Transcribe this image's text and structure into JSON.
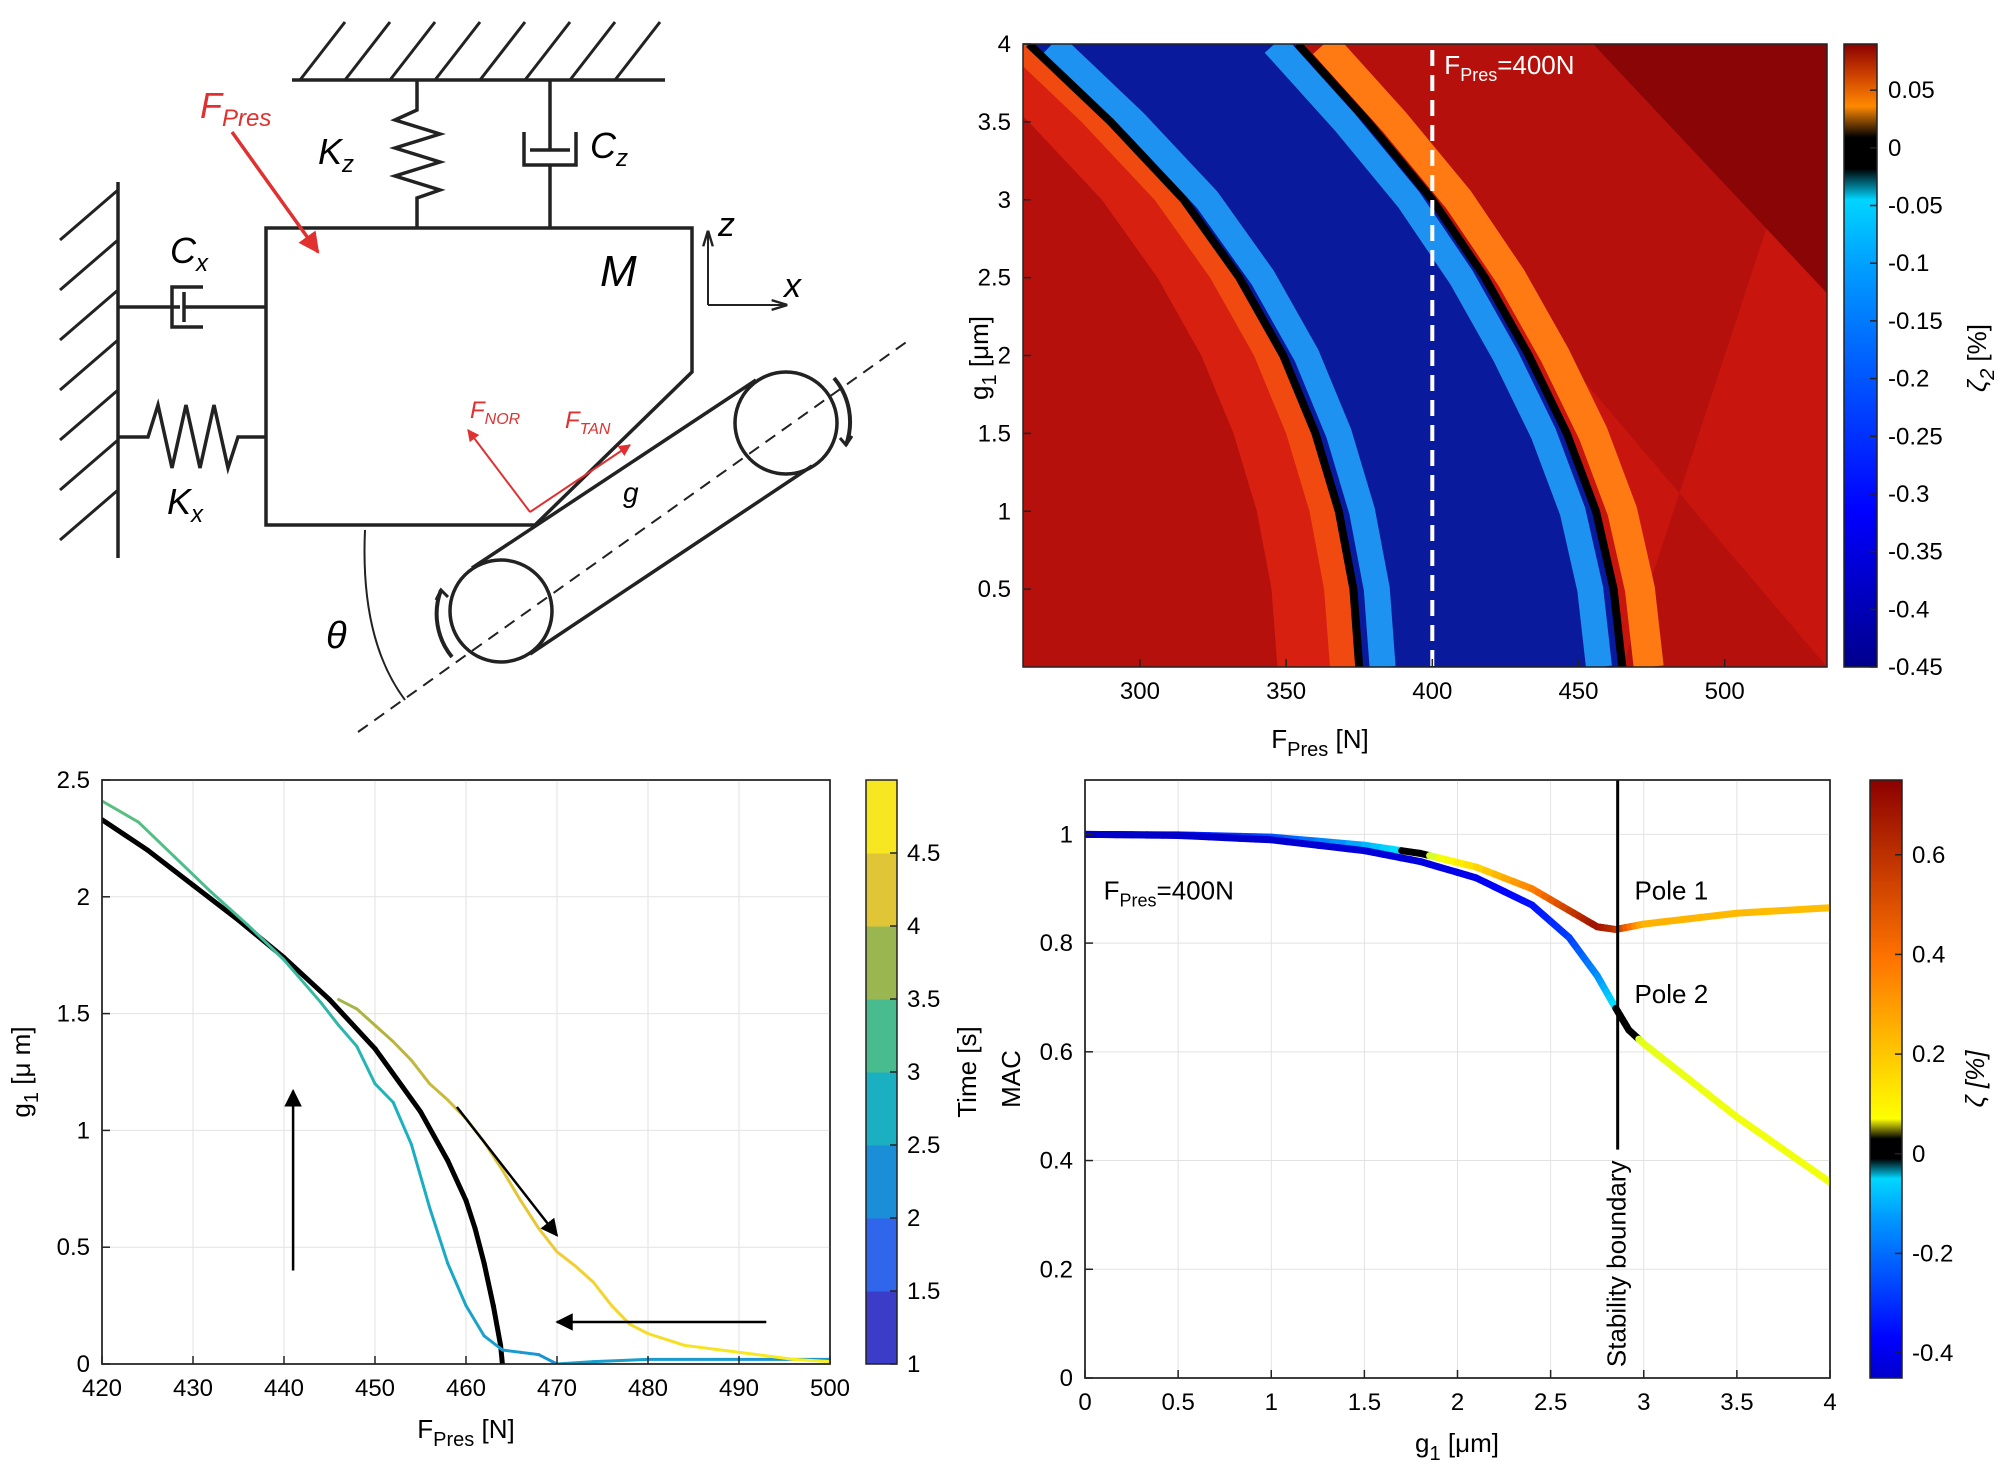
{
  "figure": {
    "diagram": {
      "labels": {
        "f_pres": "F",
        "f_pres_sub": "Pres",
        "kz": "K",
        "kz_sub": "z",
        "cz": "C",
        "cz_sub": "z",
        "cx": "C",
        "cx_sub": "x",
        "kx": "K",
        "kx_sub": "x",
        "mass": "M",
        "z_axis": "z",
        "x_axis": "x",
        "f_nor": "F",
        "f_nor_sub": "NOR",
        "f_tan": "F",
        "f_tan_sub": "TAN",
        "gap": "g",
        "theta": "θ"
      },
      "colors": {
        "force": "#e03030",
        "line": "#222222"
      }
    }
  },
  "chart_data": [
    {
      "id": "top-right",
      "type": "heatmap",
      "xlabel": "F",
      "xlabel_sub": "Pres",
      "xlabel_unit": " [N]",
      "ylabel": "g",
      "ylabel_sub": "1",
      "ylabel_unit": " [μm]",
      "xlim": [
        260,
        535
      ],
      "ylim": [
        0,
        4
      ],
      "xticks": [
        300,
        350,
        400,
        450,
        500
      ],
      "yticks": [
        0.5,
        1,
        1.5,
        2,
        2.5,
        3,
        3.5,
        4
      ],
      "stability_curves": [
        {
          "points": [
            [
              262,
              4.0
            ],
            [
              290,
              3.5
            ],
            [
              315,
              3.0
            ],
            [
              334,
              2.5
            ],
            [
              349,
              2.0
            ],
            [
              360,
              1.5
            ],
            [
              368,
              1.0
            ],
            [
              373,
              0.5
            ],
            [
              375,
              0.0
            ]
          ]
        },
        {
          "points": [
            [
              354,
              4.0
            ],
            [
              378,
              3.5
            ],
            [
              400,
              3.0
            ],
            [
              418,
              2.5
            ],
            [
              433,
              2.0
            ],
            [
              446,
              1.5
            ],
            [
              456,
              1.0
            ],
            [
              462,
              0.5
            ],
            [
              465,
              0.0
            ]
          ]
        }
      ],
      "annotation": {
        "x": 400,
        "text": "F",
        "sub": "Pres",
        "suffix": "=400N"
      },
      "colorbar": {
        "label": "ζ",
        "label_sub": "2",
        "label_unit": " [%]",
        "range": [
          -0.45,
          0.09
        ],
        "ticks": [
          "0.05",
          "0",
          "-0.05",
          "-0.1",
          "-0.15",
          "-0.2",
          "-0.25",
          "-0.3",
          "-0.35",
          "-0.4",
          "-0.45"
        ],
        "tick_values": [
          0.05,
          0,
          -0.05,
          -0.1,
          -0.15,
          -0.2,
          -0.25,
          -0.3,
          -0.35,
          -0.4,
          -0.45
        ]
      },
      "grid": false
    },
    {
      "id": "bottom-left",
      "type": "line",
      "xlabel": "F",
      "xlabel_sub": "Pres",
      "xlabel_unit": " [N]",
      "ylabel": "g",
      "ylabel_sub": "1",
      "ylabel_unit": " [μ m]",
      "xlim": [
        420,
        500
      ],
      "ylim": [
        0,
        2.5
      ],
      "xticks": [
        420,
        430,
        440,
        450,
        460,
        470,
        480,
        490,
        500
      ],
      "yticks": [
        0,
        0.5,
        1,
        1.5,
        2,
        2.5
      ],
      "grid": true,
      "series": [
        {
          "role": "stability_boundary",
          "color": "#000000",
          "x": [
            420,
            425,
            430,
            435,
            440,
            445,
            450,
            455,
            458,
            460,
            461,
            462,
            463,
            463.8,
            464
          ],
          "y": [
            2.33,
            2.2,
            2.05,
            1.9,
            1.74,
            1.56,
            1.35,
            1.08,
            0.87,
            0.7,
            0.58,
            0.43,
            0.25,
            0.08,
            0.0
          ]
        },
        {
          "role": "response-increasing",
          "x": [
            420,
            424,
            428,
            432,
            436,
            440,
            444,
            446,
            448,
            450,
            452,
            454,
            456,
            458,
            460,
            462,
            464,
            466,
            468,
            470,
            474,
            480,
            490,
            500
          ],
          "y": [
            2.41,
            2.32,
            2.17,
            2.02,
            1.88,
            1.73,
            1.55,
            1.45,
            1.36,
            1.2,
            1.12,
            0.94,
            0.67,
            0.43,
            0.25,
            0.12,
            0.06,
            0.05,
            0.04,
            0.0,
            0.01,
            0.02,
            0.02,
            0.02
          ]
        },
        {
          "role": "response-decreasing",
          "x": [
            446,
            448,
            450,
            452,
            454,
            456,
            458,
            460,
            462,
            464,
            466,
            468,
            470,
            472,
            474,
            476,
            478,
            480,
            484,
            488,
            492,
            496,
            500
          ],
          "y": [
            1.56,
            1.52,
            1.45,
            1.38,
            1.3,
            1.2,
            1.13,
            1.05,
            0.95,
            0.83,
            0.7,
            0.58,
            0.48,
            0.42,
            0.35,
            0.25,
            0.17,
            0.13,
            0.08,
            0.06,
            0.04,
            0.02,
            0.01
          ]
        }
      ],
      "arrows": [
        {
          "from": [
            441,
            0.4
          ],
          "to": [
            441,
            1.17
          ]
        },
        {
          "from": [
            459,
            1.1
          ],
          "to": [
            470,
            0.55
          ]
        },
        {
          "from": [
            493,
            0.18
          ],
          "to": [
            470,
            0.18
          ]
        }
      ],
      "colorbar": {
        "label": "Time [s]",
        "range": [
          1,
          5
        ],
        "ticks": [
          "1",
          "1.5",
          "2",
          "2.5",
          "3",
          "3.5",
          "4",
          "4.5"
        ],
        "tick_values": [
          1,
          1.5,
          2,
          2.5,
          3,
          3.5,
          4,
          4.5
        ]
      }
    },
    {
      "id": "bottom-right",
      "type": "line",
      "xlabel": "g",
      "xlabel_sub": "1",
      "xlabel_unit": " [μm]",
      "ylabel": "MAC",
      "xlim": [
        0,
        4
      ],
      "ylim": [
        0,
        1.1
      ],
      "xticks": [
        0,
        0.5,
        1,
        1.5,
        2,
        2.5,
        3,
        3.5,
        4
      ],
      "yticks": [
        0,
        0.2,
        0.4,
        0.6,
        0.8,
        1
      ],
      "grid": true,
      "annotation": {
        "text": "F",
        "sub": "Pres",
        "suffix": "=400N"
      },
      "boundary": {
        "x": 2.86,
        "label": "Stability boundary"
      },
      "series": [
        {
          "name": "Pole 1",
          "x": [
            0,
            0.5,
            1,
            1.5,
            1.8,
            2.1,
            2.4,
            2.6,
            2.75,
            2.85,
            3.0,
            3.5,
            4.0
          ],
          "y": [
            1.0,
            0.999,
            0.995,
            0.98,
            0.965,
            0.94,
            0.9,
            0.86,
            0.83,
            0.825,
            0.835,
            0.855,
            0.865
          ],
          "zeta": [
            -0.45,
            -0.35,
            -0.25,
            -0.1,
            0.0,
            0.15,
            0.35,
            0.55,
            0.7,
            0.6,
            0.25,
            0.23,
            0.22
          ]
        },
        {
          "name": "Pole 2",
          "x": [
            0,
            0.5,
            1,
            1.5,
            1.8,
            2.1,
            2.4,
            2.6,
            2.75,
            2.85,
            2.92,
            3.0,
            3.5,
            4.0
          ],
          "y": [
            1.0,
            0.998,
            0.99,
            0.97,
            0.95,
            0.92,
            0.87,
            0.81,
            0.74,
            0.68,
            0.64,
            0.615,
            0.48,
            0.36
          ],
          "zeta": [
            -0.45,
            -0.45,
            -0.44,
            -0.43,
            -0.42,
            -0.4,
            -0.35,
            -0.28,
            -0.15,
            -0.03,
            0.0,
            0.05,
            0.06,
            0.06
          ]
        }
      ],
      "colorbar": {
        "label": "ζ [%]",
        "range": [
          -0.45,
          0.75
        ],
        "ticks": [
          "0.6",
          "0.4",
          "0.2",
          "0",
          "-0.2",
          "-0.4"
        ],
        "tick_values": [
          0.6,
          0.4,
          0.2,
          0,
          -0.2,
          -0.4
        ]
      }
    }
  ]
}
